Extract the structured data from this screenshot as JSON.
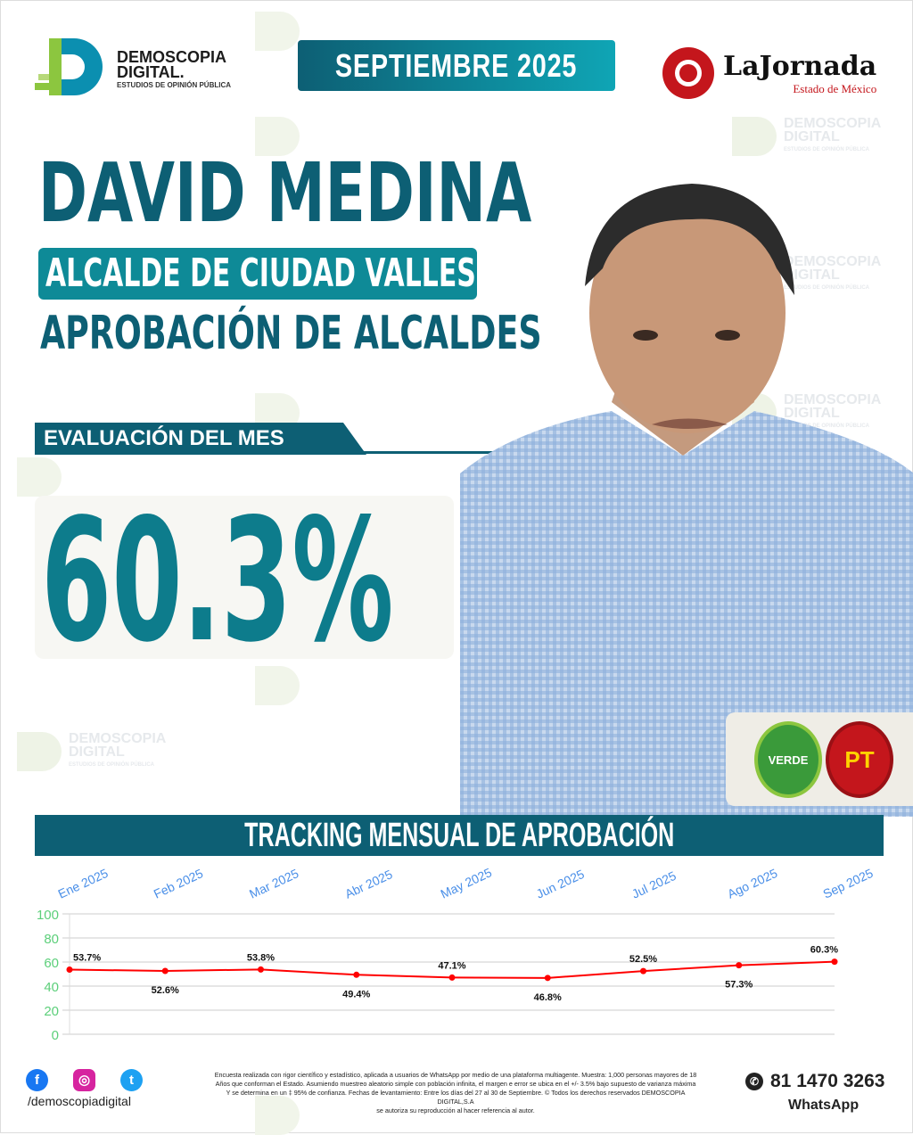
{
  "header": {
    "brand_line1": "DEMOSCOPIA",
    "brand_line2": "DIGITAL.",
    "brand_tagline": "ESTUDIOS DE OPINIÓN PÚBLICA",
    "month": "SEPTIEMBRE 2025",
    "partner_logo": "LaJornada",
    "partner_sub": "Estado de México"
  },
  "watermark": {
    "line1": "DEMOSCOPIA",
    "line2": "DIGITAL",
    "line3": "ESTUDIOS DE OPINIÓN PÚBLICA"
  },
  "main": {
    "name": "DAVID MEDINA",
    "role": "ALCALDE DE CIUDAD VALLES",
    "subtitle": "APROBACIÓN DE ALCALDES",
    "eval_label": "EVALUACIÓN DEL MES",
    "eval_value": "60.3%",
    "approval_percent": 60.3
  },
  "parties": [
    {
      "label": "VERDE",
      "color": "#3a9a3a"
    },
    {
      "label": "PT",
      "color": "#c4161c"
    }
  ],
  "chart_data": {
    "type": "line",
    "title": "TRACKING MENSUAL DE APROBACIÓN",
    "categories": [
      "Ene 2025",
      "Feb 2025",
      "Mar 2025",
      "Abr 2025",
      "May 2025",
      "Jun 2025",
      "Jul 2025",
      "Ago 2025",
      "Sep 2025"
    ],
    "values": [
      53.7,
      52.6,
      53.8,
      49.4,
      47.1,
      46.8,
      52.5,
      57.3,
      60.3
    ],
    "labels": [
      "53.7%",
      "52.6%",
      "53.8%",
      "49.4%",
      "47.1%",
      "46.8%",
      "52.5%",
      "57.3%",
      "60.3%"
    ],
    "ylim": [
      0,
      100
    ],
    "yticks": [
      "0",
      "20",
      "40",
      "60",
      "80",
      "100"
    ],
    "grid": true,
    "line_color": "#ff0000",
    "xtick_color": "#4a8fe8",
    "ytick_color": "#5ccf7a"
  },
  "footer": {
    "handle": "/demoscopiadigital",
    "phone": "81 1470 3263",
    "whatsapp": "WhatsApp",
    "social": [
      "facebook",
      "instagram",
      "twitter"
    ],
    "disclaimer": [
      "Encuesta realizada con rigor científico y estadístico, aplicada a usuarios de WhatsApp por medio de una plataforma multiagente. Muestra: 1,000 personas mayores de 18",
      "Años que conforman el Estado. Asumiendo muestreo aleatorio simple con población infinita, el margen e error se ubica en el +/- 3.5% bajo supuesto de varianza máxima",
      "Y se determina en un ‡ 95% de confianza. Fechas de levantamiento: Entre los días del 27 al 30 de Septiembre. © Todos los derechos reservados DEMOSCOPIA DIGITAL,S.A",
      "se autoriza su reproducción al hacer referencia al autor."
    ]
  },
  "colors": {
    "primary": "#0d5f74",
    "accent": "#0e8a97"
  }
}
